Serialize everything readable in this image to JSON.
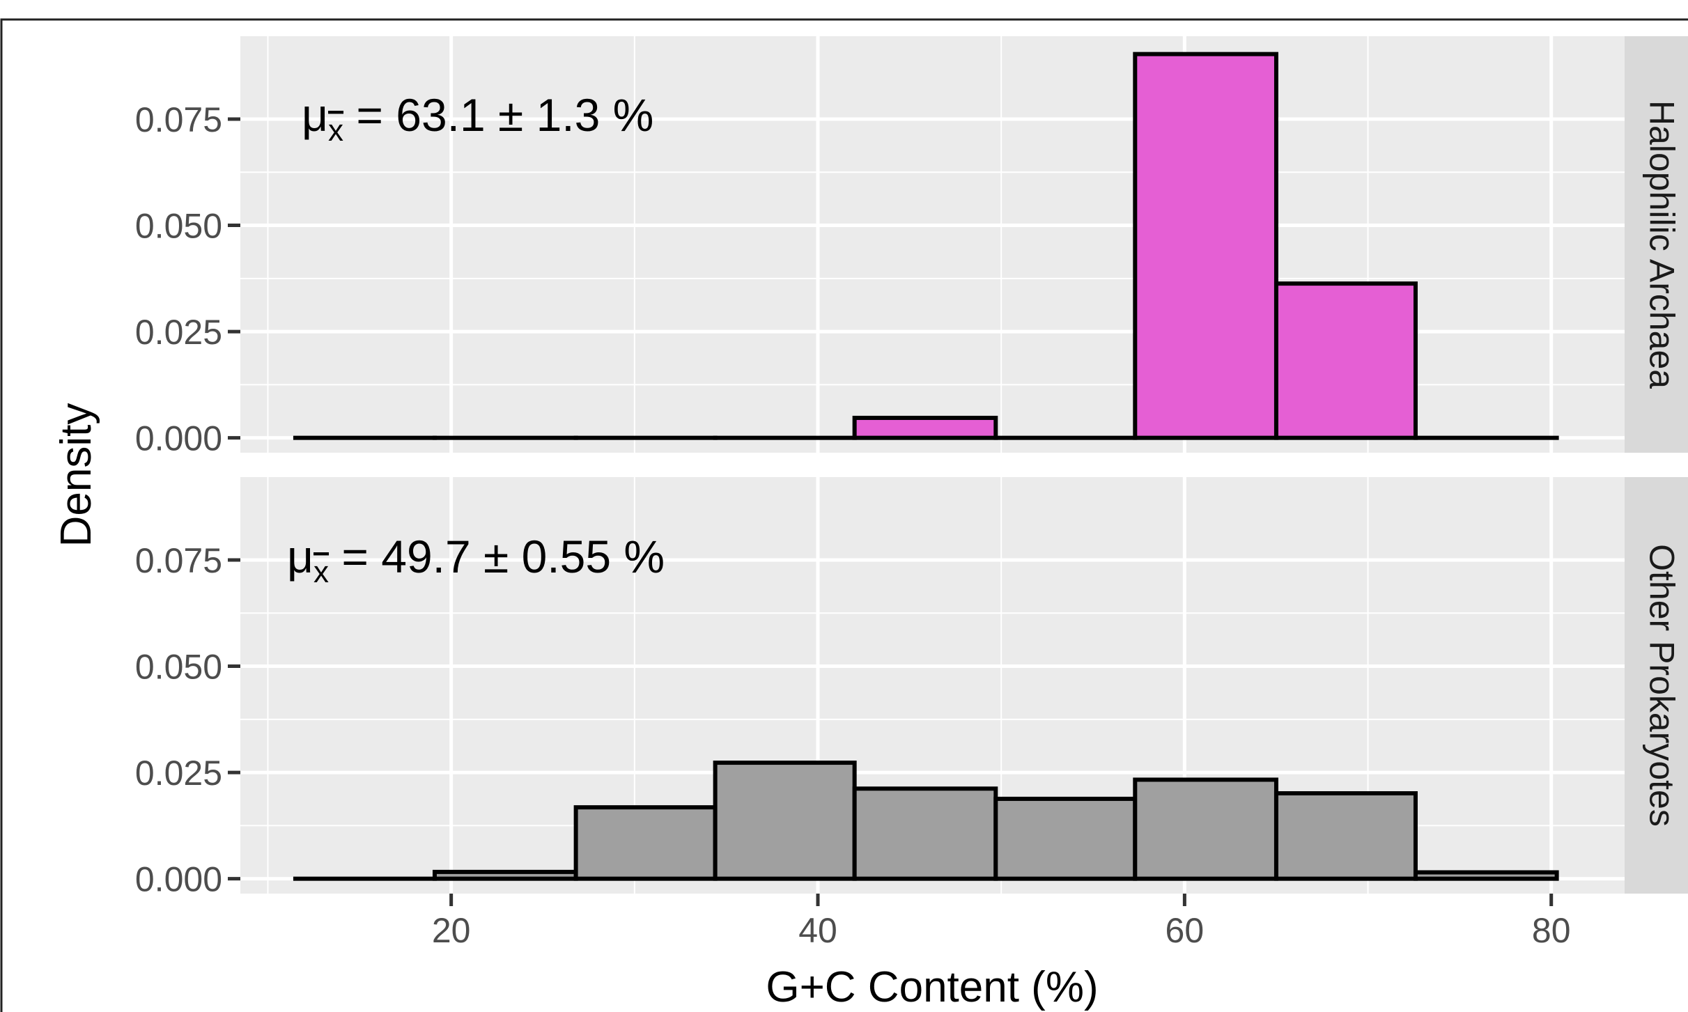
{
  "chart_data": {
    "type": "bar",
    "subtype": "faceted-histogram",
    "xlabel": "G+C Content (%)",
    "ylabel": "Density",
    "xlim": [
      8.5,
      84
    ],
    "ylim": [
      -0.0035,
      0.0945
    ],
    "x_ticks": [
      20,
      40,
      60,
      80
    ],
    "x_tick_labels": [
      "20",
      "40",
      "60",
      "80"
    ],
    "y_ticks": [
      0,
      0.025,
      0.05,
      0.075
    ],
    "y_tick_labels": [
      "0.000",
      "0.025",
      "0.050",
      "0.075"
    ],
    "grid": true,
    "panel_background": "#ebebeb",
    "bin_edges": [
      11.5,
      19.1,
      26.8,
      34.4,
      42.0,
      49.7,
      57.3,
      65.0,
      72.6,
      80.3
    ],
    "panels": [
      {
        "name": "Halophilic Archaea",
        "fill": "#e55fd4",
        "values": [
          0.0,
          0.0,
          0.0,
          0.0,
          0.0047,
          0.0,
          0.0903,
          0.0363,
          0.0
        ],
        "annotation": {
          "mu": "μ",
          "sub": "x",
          "text": " = 63.1 ± 1.3 %"
        }
      },
      {
        "name": "Other Prokaryotes",
        "fill": "#a0a0a0",
        "values": [
          0.0,
          0.0016,
          0.0168,
          0.0273,
          0.0212,
          0.0188,
          0.0233,
          0.0201,
          0.0015
        ],
        "annotation": {
          "mu": "μ",
          "sub": "x",
          "text": " = 49.7 ± 0.55 %"
        }
      }
    ]
  }
}
